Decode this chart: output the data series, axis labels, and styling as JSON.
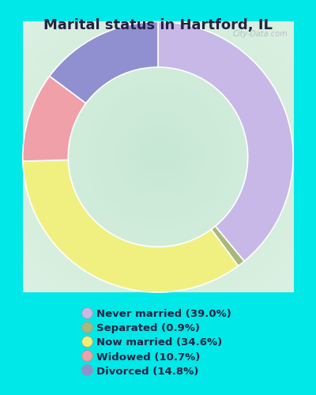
{
  "title": "Marital status in Hartford, IL",
  "categories": [
    "Never married",
    "Separated",
    "Now married",
    "Widowed",
    "Divorced"
  ],
  "values": [
    39.0,
    0.9,
    34.6,
    10.7,
    14.8
  ],
  "colors": [
    "#c8b8e8",
    "#a8b87a",
    "#f0f080",
    "#f0a0a8",
    "#9090d0"
  ],
  "legend_colors": [
    "#c8b8e8",
    "#a8b878",
    "#f0f070",
    "#f0a0a8",
    "#9090d0"
  ],
  "legend_labels": [
    "Never married (39.0%)",
    "Separated (0.9%)",
    "Now married (34.6%)",
    "Widowed (10.7%)",
    "Divorced (14.8%)"
  ],
  "background_cyan": "#00e8e8",
  "title_color": "#222244",
  "title_fontsize": 13,
  "legend_fontsize": 9.5,
  "start_angle": 90,
  "watermark": "City-Data.com"
}
